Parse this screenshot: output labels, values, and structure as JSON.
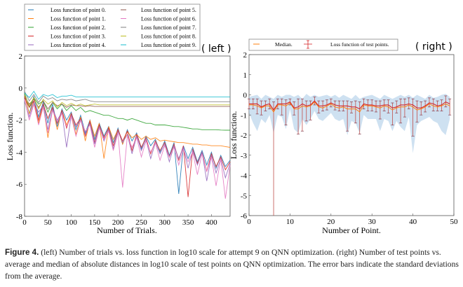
{
  "panel_labels": {
    "left": "( left )",
    "right": "( right )"
  },
  "caption": {
    "label": "Figure 4.",
    "text": " (left) Number of trials vs. loss function in log10 scale for attempt 9 on QNN optimization. (right) Number of test points vs. average and median of absolute distances in log10 scale of test points on QNN optimization. The error bars indicate the standard deviations from the average."
  },
  "chart_data": [
    {
      "type": "line",
      "xlabel": "Number of Trials.",
      "ylabel": "Loss function.",
      "xlim": [
        0,
        440
      ],
      "ylim": [
        -8,
        2
      ],
      "xticks": [
        "0",
        "50",
        "100",
        "150",
        "200",
        "250",
        "300",
        "350",
        "400"
      ],
      "yticks": [
        "-8",
        "-6",
        "-4",
        "-2",
        "0",
        "2"
      ],
      "grid": false,
      "legend_position": "above-plot",
      "x": [
        0,
        10,
        20,
        30,
        40,
        50,
        60,
        70,
        80,
        90,
        100,
        110,
        120,
        130,
        140,
        150,
        160,
        170,
        180,
        190,
        200,
        210,
        220,
        230,
        240,
        250,
        260,
        270,
        280,
        290,
        300,
        310,
        320,
        330,
        340,
        350,
        360,
        370,
        380,
        390,
        400,
        410,
        420,
        430,
        440
      ],
      "series": [
        {
          "name": "Loss function of point 0.",
          "color": "#1f77b4",
          "values": [
            -0.4,
            -1.6,
            -0.5,
            -1.8,
            -0.9,
            -2.2,
            -1.0,
            -2.4,
            -1.3,
            -2.0,
            -1.5,
            -2.6,
            -1.7,
            -2.8,
            -2.0,
            -3.2,
            -2.2,
            -3.0,
            -2.4,
            -3.4,
            -2.5,
            -3.5,
            -2.6,
            -3.3,
            -2.8,
            -3.8,
            -3.0,
            -3.6,
            -3.2,
            -4.0,
            -3.3,
            -4.2,
            -3.4,
            -6.6,
            -3.6,
            -4.4,
            -3.7,
            -4.6,
            -3.9,
            -4.8,
            -4.0,
            -5.0,
            -4.2,
            -4.9,
            -4.5
          ]
        },
        {
          "name": "Loss function of point 1.",
          "color": "#ff7f0e",
          "values": [
            -0.5,
            -1.6,
            -0.8,
            -2.2,
            -1.0,
            -3.1,
            -1.2,
            -2.6,
            -1.4,
            -2.3,
            -1.6,
            -2.9,
            -1.8,
            -3.3,
            -2.0,
            -3.0,
            -2.2,
            -4.4,
            -2.4,
            -3.2,
            -2.6,
            -3.5,
            -2.7,
            -3.1,
            -2.9,
            -3.2,
            -3.0,
            -3.2,
            -3.1,
            -3.3,
            -3.25,
            -3.3,
            -3.35,
            -3.4,
            -3.4,
            -3.45,
            -3.5,
            -3.5,
            -3.55,
            -3.55,
            -3.6,
            -3.6,
            -3.6,
            -3.65,
            -3.7
          ]
        },
        {
          "name": "Loss function of point 2.",
          "color": "#2ca02c",
          "values": [
            -0.3,
            -1.2,
            -0.6,
            -1.0,
            -0.8,
            -1.5,
            -0.9,
            -1.3,
            -1.0,
            -1.4,
            -1.1,
            -1.4,
            -1.2,
            -1.5,
            -1.4,
            -1.5,
            -1.6,
            -1.7,
            -1.7,
            -1.8,
            -1.9,
            -1.9,
            -2.0,
            -1.9,
            -2.0,
            -2.1,
            -2.2,
            -2.2,
            -2.3,
            -2.3,
            -2.3,
            -2.35,
            -2.4,
            -2.4,
            -2.45,
            -2.5,
            -2.55,
            -2.55,
            -2.6,
            -2.6,
            -2.6,
            -2.6,
            -2.62,
            -2.63,
            -2.63
          ]
        },
        {
          "name": "Loss function of point 3.",
          "color": "#d62728",
          "values": [
            -0.6,
            -1.2,
            -0.8,
            -2.0,
            -1.0,
            -1.9,
            -1.2,
            -2.2,
            -1.4,
            -2.5,
            -1.6,
            -2.3,
            -1.9,
            -3.0,
            -2.1,
            -3.4,
            -2.3,
            -3.1,
            -2.5,
            -3.6,
            -2.6,
            -3.3,
            -2.7,
            -3.9,
            -2.9,
            -3.7,
            -3.1,
            -4.1,
            -3.3,
            -3.9,
            -3.4,
            -4.3,
            -3.5,
            -4.5,
            -3.6,
            -6.8,
            -3.8,
            -4.7,
            -4.0,
            -5.2,
            -4.1,
            -4.9,
            -4.3,
            -5.1,
            -4.6
          ]
        },
        {
          "name": "Loss function of point 4.",
          "color": "#9467bd",
          "values": [
            -0.8,
            -1.8,
            -0.9,
            -1.5,
            -1.1,
            -2.6,
            -1.3,
            -2.0,
            -1.5,
            -3.7,
            -1.7,
            -2.4,
            -2.0,
            -2.9,
            -2.2,
            -3.5,
            -2.4,
            -3.3,
            -2.6,
            -3.8,
            -2.7,
            -3.4,
            -2.9,
            -4.1,
            -3.0,
            -3.9,
            -3.2,
            -4.4,
            -3.4,
            -4.1,
            -3.5,
            -4.6,
            -3.6,
            -4.4,
            -3.7,
            -5.0,
            -3.9,
            -4.8,
            -4.0,
            -5.8,
            -4.2,
            -5.3,
            -4.4,
            -5.6,
            -4.7
          ]
        },
        {
          "name": "Loss function of point 5.",
          "color": "#8c564b",
          "values": [
            -0.5,
            -1.0,
            -0.7,
            -1.2,
            -0.8,
            -1.3,
            -0.9,
            -1.1,
            -1.0,
            -1.2,
            -1.05,
            -1.1,
            -1.1,
            -1.15,
            -1.1,
            -1.15,
            -1.15,
            -1.15,
            -1.15,
            -1.15,
            -1.15,
            -1.15,
            -1.15,
            -1.15,
            -1.15,
            -1.15,
            -1.15,
            -1.15,
            -1.15,
            -1.15,
            -1.15,
            -1.15,
            -1.15,
            -1.15,
            -1.15,
            -1.15,
            -1.15,
            -1.15,
            -1.15,
            -1.15,
            -1.15,
            -1.15,
            -1.15,
            -1.15,
            -1.15
          ]
        },
        {
          "name": "Loss function of point 6.",
          "color": "#e377c2",
          "values": [
            -0.7,
            -2.0,
            -1.0,
            -2.3,
            -1.2,
            -2.8,
            -1.4,
            -2.1,
            -1.6,
            -2.4,
            -1.8,
            -3.0,
            -2.0,
            -2.7,
            -2.3,
            -3.7,
            -2.5,
            -3.2,
            -2.7,
            -3.9,
            -2.8,
            -6.2,
            -3.0,
            -3.7,
            -3.1,
            -4.3,
            -3.3,
            -4.0,
            -3.4,
            -4.5,
            -3.6,
            -4.3,
            -3.7,
            -4.8,
            -3.8,
            -4.6,
            -4.0,
            -5.4,
            -4.1,
            -5.2,
            -4.3,
            -6.1,
            -4.4,
            -6.9,
            -4.8
          ]
        },
        {
          "name": "Loss function of point 7.",
          "color": "#7f7f7f",
          "values": [
            -0.2,
            -0.8,
            -0.4,
            -0.9,
            -0.5,
            -0.7,
            -0.6,
            -0.8,
            -0.7,
            -0.75,
            -0.7,
            -0.8,
            -0.75,
            -0.7,
            -0.8,
            -0.85,
            -0.85,
            -0.85,
            -0.85,
            -0.85,
            -0.85,
            -0.85,
            -0.85,
            -0.85,
            -0.85,
            -0.85,
            -0.85,
            -0.85,
            -0.85,
            -0.85,
            -0.85,
            -0.85,
            -0.85,
            -0.85,
            -0.85,
            -0.85,
            -0.85,
            -0.85,
            -0.85,
            -0.85,
            -0.85,
            -0.85,
            -0.85,
            -0.85,
            -0.85
          ]
        },
        {
          "name": "Loss function of point 8.",
          "color": "#bcbd22",
          "values": [
            -0.4,
            -1.1,
            -0.6,
            -1.3,
            -0.7,
            -1.0,
            -0.8,
            -1.2,
            -0.9,
            -1.1,
            -0.95,
            -1.1,
            -1.0,
            -1.1,
            -1.05,
            -1.0,
            -1.05,
            -1.05,
            -1.05,
            -1.05,
            -1.05,
            -1.05,
            -1.05,
            -1.05,
            -1.05,
            -1.05,
            -1.05,
            -1.05,
            -1.05,
            -1.05,
            -1.05,
            -1.05,
            -1.05,
            -1.05,
            -1.05,
            -1.05,
            -1.05,
            -1.05,
            -1.05,
            -1.05,
            -1.05,
            -1.05,
            -1.05,
            -1.05,
            -1.05
          ]
        },
        {
          "name": "Loss function of point 9.",
          "color": "#17becf",
          "values": [
            -0.3,
            -0.6,
            -0.2,
            -0.7,
            -0.4,
            -0.5,
            -0.4,
            -0.6,
            -0.5,
            -0.5,
            -0.45,
            -0.55,
            -0.55,
            -0.55,
            -0.55,
            -0.55,
            -0.55,
            -0.55,
            -0.55,
            -0.55,
            -0.55,
            -0.55,
            -0.55,
            -0.55,
            -0.55,
            -0.55,
            -0.55,
            -0.55,
            -0.55,
            -0.55,
            -0.55,
            -0.55,
            -0.55,
            -0.55,
            -0.55,
            -0.55,
            -0.55,
            -0.55,
            -0.55,
            -0.55,
            -0.55,
            -0.55,
            -0.55,
            -0.55,
            -0.55
          ]
        }
      ]
    },
    {
      "type": "line",
      "xlabel": "Number of Point.",
      "ylabel": "Loss function.",
      "xlim": [
        0,
        50
      ],
      "ylim": [
        -6,
        2
      ],
      "xticks": [
        "0",
        "10",
        "20",
        "30",
        "40",
        "50"
      ],
      "yticks": [
        "-6",
        "-5",
        "-4",
        "-3",
        "-2",
        "-1",
        "0",
        "1",
        "2"
      ],
      "grid": false,
      "legend_position": "above-plot",
      "legend": {
        "median": "Median.",
        "errorbar": "Loss function of test points."
      },
      "colors": {
        "mean": "#d62728",
        "median": "#ff7f0e",
        "band": "#aecde8"
      },
      "x": [
        0,
        1,
        2,
        3,
        4,
        5,
        6,
        7,
        8,
        9,
        10,
        11,
        12,
        13,
        14,
        15,
        16,
        17,
        18,
        19,
        20,
        21,
        22,
        23,
        24,
        25,
        26,
        27,
        28,
        29,
        30,
        31,
        32,
        33,
        34,
        35,
        36,
        37,
        38,
        39,
        40,
        41,
        42,
        43,
        44,
        45,
        46,
        47,
        48,
        49
      ],
      "mean": [
        -0.45,
        -0.45,
        -0.45,
        -0.6,
        -0.5,
        -0.45,
        -0.75,
        -0.45,
        -0.45,
        -0.45,
        -0.35,
        -0.65,
        -0.6,
        -0.45,
        -0.55,
        -0.5,
        -0.3,
        -0.55,
        -0.55,
        -0.5,
        -0.4,
        -0.5,
        -0.55,
        -0.55,
        -0.55,
        -0.6,
        -0.6,
        -0.7,
        -0.45,
        -0.5,
        -0.5,
        -0.55,
        -0.55,
        -0.5,
        -0.5,
        -0.65,
        -0.6,
        -0.5,
        -0.5,
        -0.45,
        -0.5,
        -0.65,
        -0.65,
        -0.55,
        -0.4,
        -0.45,
        -0.55,
        -0.5,
        -0.35,
        -0.45
      ],
      "median": [
        -0.5,
        -0.5,
        -0.55,
        -0.65,
        -0.55,
        -0.55,
        -0.85,
        -0.5,
        -0.5,
        -0.55,
        -0.4,
        -0.7,
        -0.7,
        -0.55,
        -0.6,
        -0.55,
        -0.35,
        -0.6,
        -0.65,
        -0.55,
        -0.45,
        -0.6,
        -0.65,
        -0.6,
        -0.7,
        -0.7,
        -0.7,
        -0.85,
        -0.5,
        -0.55,
        -0.55,
        -0.6,
        -0.65,
        -0.55,
        -0.6,
        -0.75,
        -0.65,
        -0.6,
        -0.6,
        -0.5,
        -0.6,
        -0.75,
        -0.7,
        -0.6,
        -0.45,
        -0.55,
        -0.6,
        -0.55,
        -0.45,
        -0.55
      ],
      "error_bar_high": [
        -0.2,
        -0.2,
        -0.2,
        -0.3,
        -0.3,
        -0.2,
        -0.35,
        -0.2,
        -0.2,
        -0.25,
        -0.2,
        -0.35,
        -0.2,
        -0.2,
        -0.3,
        -0.3,
        -0.1,
        -0.3,
        -0.3,
        -0.25,
        -0.2,
        -0.3,
        -0.3,
        -0.3,
        -0.3,
        -0.35,
        -0.3,
        -0.35,
        -0.2,
        -0.25,
        -0.25,
        -0.3,
        -0.3,
        -0.25,
        -0.25,
        -0.4,
        -0.3,
        -0.2,
        -0.2,
        -0.15,
        -0.2,
        -0.3,
        -0.35,
        -0.3,
        -0.15,
        -0.2,
        -0.3,
        -0.25,
        -0.05,
        -0.2
      ],
      "error_bar_low": [
        -0.7,
        -0.7,
        -0.95,
        -1.0,
        -0.8,
        -0.7,
        -7,
        -0.7,
        -1.0,
        -1.5,
        -0.5,
        -1.0,
        -1.95,
        -1.8,
        -1.3,
        -1.25,
        -0.5,
        -0.9,
        -0.8,
        -0.75,
        -0.6,
        -0.75,
        -0.8,
        -0.8,
        -1.8,
        -0.9,
        -1.4,
        -1.95,
        -0.7,
        -0.8,
        -0.8,
        -0.85,
        -1.2,
        -0.8,
        -0.9,
        -1.5,
        -0.9,
        -1.4,
        -1.1,
        -0.7,
        -2.05,
        -1.35,
        -1.0,
        -0.85,
        -0.6,
        -0.8,
        -0.8,
        -0.8,
        -0.6,
        -1.0
      ],
      "band_high": [
        -0.1,
        -0.05,
        0.0,
        -0.2,
        0.0,
        -0.1,
        -0.2,
        0.0,
        -0.1,
        0.0,
        0.0,
        -0.1,
        0.0,
        -0.2,
        0.05,
        -0.1,
        0.0,
        -0.1,
        -0.05,
        0.0,
        -0.1,
        0.0,
        -0.15,
        0.0,
        -0.1,
        -0.2,
        0.0,
        -0.2,
        -0.1,
        -0.05,
        0.0,
        -0.1,
        -0.2,
        0.0,
        -0.1,
        -0.2,
        -0.1,
        0.0,
        -0.1,
        0.0,
        -0.15,
        0.0,
        -0.1,
        -0.2,
        0.0,
        -0.15,
        -0.1,
        0.0,
        0.05,
        -0.1
      ],
      "band_low": [
        -0.9,
        -1.4,
        -1.8,
        -1.2,
        -1.4,
        -1.0,
        -1.9,
        -1.0,
        -1.1,
        -1.7,
        -0.7,
        -1.7,
        -1.9,
        -1.2,
        -1.5,
        -1.2,
        -0.8,
        -1.2,
        -1.3,
        -1.1,
        -0.9,
        -1.2,
        -1.3,
        -1.2,
        -2.0,
        -1.3,
        -1.4,
        -1.9,
        -1.0,
        -1.2,
        -1.2,
        -1.2,
        -1.8,
        -1.2,
        -1.3,
        -1.8,
        -1.3,
        -1.6,
        -1.8,
        -1.1,
        -2.9,
        -1.5,
        -1.3,
        -1.2,
        -1.1,
        -1.3,
        -1.4,
        -1.8,
        -2.0,
        -1.2
      ]
    }
  ]
}
